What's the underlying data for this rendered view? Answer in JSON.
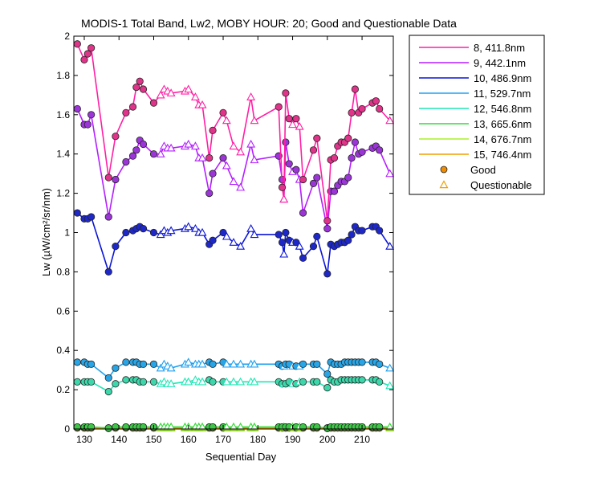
{
  "chart_data": {
    "type": "line",
    "title": "MODIS-1 Total Band,  Lw2, MOBY HOUR: 20;  Good and Questionable Data",
    "xlabel": "Sequential Day",
    "ylabel": "Lw (µW/cm²/sr/nm)",
    "xlim": [
      127,
      219
    ],
    "ylim": [
      0,
      2
    ],
    "xticks": [
      130,
      140,
      150,
      160,
      170,
      180,
      190,
      200,
      210
    ],
    "yticks": [
      0,
      0.2,
      0.4,
      0.6,
      0.8,
      1,
      1.2,
      1.4,
      1.6,
      1.8,
      2
    ],
    "ytick_labels": [
      "0",
      "0.2",
      "0.4",
      "0.6",
      "0.8",
      "1",
      "1.2",
      "1.4",
      "1.6",
      "1.8",
      "2"
    ],
    "grid": false,
    "legend_position": "outside-right",
    "markers": {
      "good_label": "Good",
      "questionable_label": "Questionable",
      "good_color": "#f08c00",
      "questionable_color": "#f0a000"
    },
    "x": [
      128,
      130,
      131,
      132,
      137,
      139,
      142,
      144,
      145,
      146,
      147,
      150,
      152,
      153,
      154,
      155,
      159,
      160,
      162,
      163,
      164,
      166,
      167,
      170,
      171,
      173,
      175,
      178,
      179,
      186,
      187,
      187.5,
      188,
      189,
      190,
      191,
      192,
      193,
      196,
      197,
      200,
      201,
      202,
      203,
      204,
      205,
      206,
      207,
      208,
      209,
      210,
      213,
      214,
      215,
      218
    ],
    "questionable": [
      12,
      13,
      14,
      15,
      16,
      17,
      18,
      19,
      20,
      24,
      25,
      26,
      27,
      28,
      31,
      34,
      36,
      54
    ],
    "series": [
      {
        "name": "8, 411.8nm",
        "color": "#ff1fa5",
        "marker_fill": "#e0338a",
        "values": [
          1.96,
          1.88,
          1.91,
          1.94,
          1.28,
          1.49,
          1.61,
          1.64,
          1.74,
          1.77,
          1.73,
          1.66,
          1.7,
          1.73,
          1.72,
          1.71,
          1.72,
          1.73,
          1.69,
          1.65,
          1.65,
          1.38,
          1.52,
          1.61,
          1.57,
          1.44,
          1.41,
          1.69,
          1.57,
          1.64,
          1.23,
          1.17,
          1.71,
          1.58,
          1.55,
          1.58,
          1.54,
          1.27,
          1.42,
          1.48,
          1.06,
          1.37,
          1.38,
          1.44,
          1.46,
          1.46,
          1.48,
          1.61,
          1.73,
          1.61,
          1.63,
          1.66,
          1.67,
          1.63,
          1.57
        ]
      },
      {
        "name": "9, 442.1nm",
        "color": "#b41eff",
        "marker_fill": "#9c35d8",
        "values": [
          1.63,
          1.55,
          1.55,
          1.6,
          1.08,
          1.27,
          1.36,
          1.39,
          1.42,
          1.47,
          1.45,
          1.4,
          1.4,
          1.44,
          1.43,
          1.43,
          1.44,
          1.45,
          1.44,
          1.38,
          1.38,
          1.2,
          1.3,
          1.38,
          1.34,
          1.26,
          1.23,
          1.45,
          1.37,
          1.39,
          1.27,
          1.17,
          1.46,
          1.35,
          1.31,
          1.32,
          1.27,
          1.1,
          1.25,
          1.28,
          1.02,
          1.21,
          1.21,
          1.24,
          1.26,
          1.26,
          1.28,
          1.38,
          1.46,
          1.4,
          1.41,
          1.43,
          1.44,
          1.42,
          1.3
        ]
      },
      {
        "name": "10, 486.9nm",
        "color": "#0a14d7",
        "marker_fill": "#1e28c8",
        "values": [
          1.1,
          1.07,
          1.07,
          1.08,
          0.8,
          0.93,
          1.0,
          1.01,
          1.02,
          1.03,
          1.02,
          1.0,
          0.99,
          1.01,
          1.0,
          1.01,
          1.02,
          1.03,
          1.02,
          1.0,
          1.0,
          0.94,
          0.96,
          1.0,
          0.98,
          0.95,
          0.93,
          1.02,
          0.99,
          0.99,
          0.95,
          0.89,
          1.0,
          0.96,
          0.95,
          0.95,
          0.93,
          0.87,
          0.93,
          0.98,
          0.79,
          0.94,
          0.93,
          0.94,
          0.95,
          0.95,
          0.96,
          0.99,
          1.03,
          1.01,
          1.01,
          1.03,
          1.03,
          1.01,
          0.93
        ]
      },
      {
        "name": "11, 529.7nm",
        "color": "#1ea0f0",
        "marker_fill": "#28a5e6",
        "values": [
          0.34,
          0.34,
          0.33,
          0.33,
          0.26,
          0.31,
          0.34,
          0.34,
          0.34,
          0.33,
          0.33,
          0.33,
          0.31,
          0.33,
          0.32,
          0.31,
          0.33,
          0.34,
          0.33,
          0.33,
          0.33,
          0.34,
          0.33,
          0.34,
          0.33,
          0.33,
          0.33,
          0.33,
          0.33,
          0.33,
          0.32,
          0.32,
          0.33,
          0.33,
          0.32,
          0.32,
          0.32,
          0.33,
          0.33,
          0.33,
          0.28,
          0.34,
          0.33,
          0.33,
          0.33,
          0.34,
          0.34,
          0.34,
          0.34,
          0.34,
          0.34,
          0.34,
          0.34,
          0.33,
          0.31
        ]
      },
      {
        "name": "12, 546.8nm",
        "color": "#20e6b4",
        "marker_fill": "#3cd7aa",
        "values": [
          0.24,
          0.24,
          0.24,
          0.24,
          0.19,
          0.23,
          0.25,
          0.25,
          0.25,
          0.24,
          0.24,
          0.24,
          0.23,
          0.24,
          0.23,
          0.23,
          0.24,
          0.24,
          0.25,
          0.24,
          0.24,
          0.25,
          0.24,
          0.24,
          0.24,
          0.24,
          0.24,
          0.24,
          0.24,
          0.24,
          0.23,
          0.23,
          0.23,
          0.24,
          0.23,
          0.23,
          0.24,
          0.24,
          0.24,
          0.24,
          0.21,
          0.25,
          0.24,
          0.24,
          0.25,
          0.25,
          0.25,
          0.25,
          0.25,
          0.25,
          0.25,
          0.25,
          0.25,
          0.24,
          0.22
        ]
      },
      {
        "name": "13, 665.6nm",
        "color": "#32dc3c",
        "marker_fill": "#3cc846",
        "values": [
          0.01,
          0.01,
          0.01,
          0.01,
          0.005,
          0.01,
          0.01,
          0.01,
          0.01,
          0.01,
          0.01,
          0.01,
          0.01,
          0.01,
          0.01,
          0.01,
          0.01,
          0.01,
          0.01,
          0.01,
          0.01,
          0.01,
          0.01,
          0.01,
          0.01,
          0.01,
          0.01,
          0.01,
          0.01,
          0.01,
          0.01,
          0.01,
          0.01,
          0.01,
          0.01,
          0.01,
          0.01,
          0.01,
          0.01,
          0.01,
          0.005,
          0.01,
          0.01,
          0.01,
          0.01,
          0.01,
          0.01,
          0.01,
          0.01,
          0.01,
          0.01,
          0.01,
          0.01,
          0.01,
          0.01
        ]
      },
      {
        "name": "14, 676.7nm",
        "color": "#aaf028",
        "marker_fill": "#a0d232",
        "values": [
          0.01,
          0.01,
          0.01,
          0.01,
          0.005,
          0.01,
          0.01,
          0.01,
          0.01,
          0.01,
          0.01,
          0.01,
          0.01,
          0.01,
          0.01,
          0.01,
          0.01,
          0.01,
          0.01,
          0.01,
          0.01,
          0.01,
          0.01,
          0.01,
          0.01,
          0.01,
          0.01,
          0.01,
          0.01,
          0.01,
          0.01,
          0.01,
          0.01,
          0.01,
          0.01,
          0.01,
          0.01,
          0.01,
          0.01,
          0.01,
          0.005,
          0.01,
          0.01,
          0.01,
          0.01,
          0.01,
          0.01,
          0.01,
          0.01,
          0.01,
          0.01,
          0.01,
          0.01,
          0.01,
          0.01
        ]
      },
      {
        "name": "15, 746.4nm",
        "color": "#f0a000",
        "marker_fill": "#d2a028",
        "values": [
          0.005,
          0.005,
          0.005,
          0.005,
          0.003,
          0.005,
          0.005,
          0.005,
          0.005,
          0.005,
          0.005,
          0.005,
          0.005,
          0.005,
          0.005,
          0.005,
          0.005,
          0.005,
          0.005,
          0.005,
          0.005,
          0.005,
          0.005,
          0.005,
          0.005,
          0.005,
          0.005,
          0.005,
          0.005,
          0.005,
          0.005,
          0.005,
          0.005,
          0.005,
          0.005,
          0.005,
          0.005,
          0.005,
          0.005,
          0.005,
          0.003,
          0.005,
          0.005,
          0.005,
          0.005,
          0.005,
          0.005,
          0.005,
          0.005,
          0.005,
          0.005,
          0.005,
          0.005,
          0.005,
          0.005
        ]
      }
    ]
  }
}
